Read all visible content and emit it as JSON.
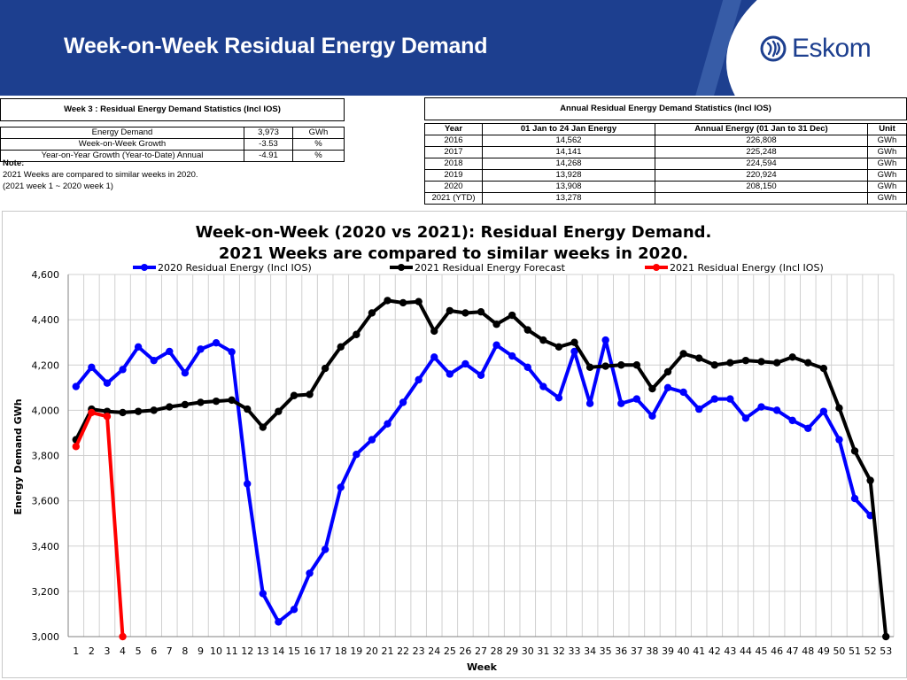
{
  "header": {
    "title": "Week-on-Week Residual Energy Demand",
    "logo_text": "Eskom",
    "colors": {
      "band": "#1d3f8f",
      "logo": "#1d3f8f"
    }
  },
  "stats_table": {
    "caption": "Week 3 : Residual Energy Demand Statistics (Incl IOS)",
    "rows": [
      {
        "label": "Energy Demand",
        "value": "3,973",
        "unit": "GWh"
      },
      {
        "label": "Week-on-Week Growth",
        "value": "-3.53",
        "unit": "%"
      },
      {
        "label": "Year-on-Year Growth (Year-to-Date) Annual",
        "value": "-4.91",
        "unit": "%"
      }
    ],
    "note_title": "Note:",
    "note_lines": [
      "2021 Weeks are compared to similar weeks in 2020.",
      "(2021 week 1 ~ 2020 week 1)"
    ]
  },
  "annual_table": {
    "caption": "Annual Residual Energy Demand Statistics (Incl IOS)",
    "headers": [
      "Year",
      "01 Jan to 24 Jan Energy",
      "Annual Energy (01 Jan to 31 Dec)",
      "Unit"
    ],
    "rows": [
      [
        "2016",
        "14,562",
        "226,808",
        "GWh"
      ],
      [
        "2017",
        "14,141",
        "225,248",
        "GWh"
      ],
      [
        "2018",
        "14,268",
        "224,594",
        "GWh"
      ],
      [
        "2019",
        "13,928",
        "220,924",
        "GWh"
      ],
      [
        "2020",
        "13,908",
        "208,150",
        "GWh"
      ],
      [
        "2021 (YTD)",
        "13,278",
        "",
        "GWh"
      ]
    ]
  },
  "chart_data": {
    "type": "line",
    "title": "Week-on-Week (2020 vs 2021): Residual Energy Demand.",
    "subtitle": "2021 Weeks are compared to similar weeks in 2020.",
    "xlabel": "Week",
    "ylabel": "Energy Demand GWh",
    "ylim": [
      3000,
      4600
    ],
    "yticks": [
      3000,
      3200,
      3400,
      3600,
      3800,
      4000,
      4200,
      4400,
      4600
    ],
    "ytick_labels": [
      "3,000",
      "3,200",
      "3,400",
      "3,600",
      "3,800",
      "4,000",
      "4,200",
      "4,400",
      "4,600"
    ],
    "x": [
      1,
      2,
      3,
      4,
      5,
      6,
      7,
      8,
      9,
      10,
      11,
      12,
      13,
      14,
      15,
      16,
      17,
      18,
      19,
      20,
      21,
      22,
      23,
      24,
      25,
      26,
      27,
      28,
      29,
      30,
      31,
      32,
      33,
      34,
      35,
      36,
      37,
      38,
      39,
      40,
      41,
      42,
      43,
      44,
      45,
      46,
      47,
      48,
      49,
      50,
      51,
      52,
      53
    ],
    "grid": true,
    "legend": "top",
    "series": [
      {
        "name": "2020 Residual Energy (Incl IOS)",
        "color": "#0000ff",
        "values": [
          4105,
          4190,
          4120,
          4180,
          4280,
          4220,
          4260,
          4165,
          4270,
          4298,
          4258,
          3675,
          3190,
          3065,
          3120,
          3280,
          3385,
          3660,
          3805,
          3870,
          3940,
          4035,
          4135,
          4235,
          4160,
          4205,
          4155,
          4288,
          4240,
          4190,
          4105,
          4055,
          4260,
          4030,
          4310,
          4030,
          4050,
          3975,
          4100,
          4080,
          4005,
          4050,
          4050,
          3965,
          4015,
          4000,
          3955,
          3920,
          3995,
          3870,
          3610,
          3535,
          null
        ]
      },
      {
        "name": "2021 Residual Energy Forecast",
        "color": "#000000",
        "values": [
          3870,
          4005,
          3995,
          3990,
          3995,
          4000,
          4015,
          4025,
          4035,
          4040,
          4045,
          4005,
          3925,
          3995,
          4065,
          4070,
          4185,
          4280,
          4335,
          4430,
          4485,
          4475,
          4480,
          4350,
          4440,
          4430,
          4435,
          4380,
          4420,
          4355,
          4310,
          4280,
          4300,
          4190,
          4195,
          4200,
          4200,
          4095,
          4170,
          4250,
          4230,
          4200,
          4210,
          4220,
          4215,
          4210,
          4235,
          4210,
          4185,
          4010,
          3820,
          3690,
          3000
        ]
      },
      {
        "name": "2021 Residual Energy (Incl IOS)",
        "color": "#ff0000",
        "values": [
          3840,
          3990,
          3973,
          3000,
          null,
          null,
          null,
          null,
          null,
          null,
          null,
          null,
          null,
          null,
          null,
          null,
          null,
          null,
          null,
          null,
          null,
          null,
          null,
          null,
          null,
          null,
          null,
          null,
          null,
          null,
          null,
          null,
          null,
          null,
          null,
          null,
          null,
          null,
          null,
          null,
          null,
          null,
          null,
          null,
          null,
          null,
          null,
          null,
          null,
          null,
          null,
          null,
          null
        ]
      }
    ]
  }
}
